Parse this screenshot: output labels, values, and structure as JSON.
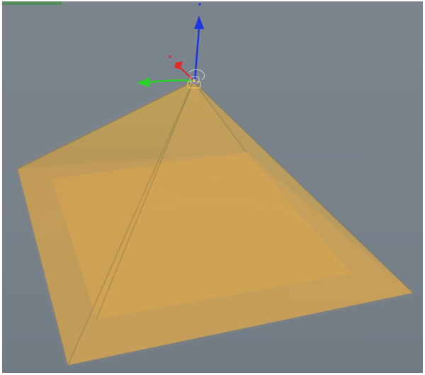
{
  "viewport": {
    "background": "#7a838c",
    "hud_indicator_color": "#4e8a52"
  },
  "object": {
    "shape": "pyramid",
    "state": "selected",
    "color": "#d3aa4d"
  },
  "gizmo": {
    "type": "translate-gizmo",
    "axes": [
      {
        "axis": "x",
        "color": "#e02a2a",
        "icon": "red-axis-arrow-icon"
      },
      {
        "axis": "y",
        "color": "#2ad12a",
        "icon": "green-axis-arrow-icon"
      },
      {
        "axis": "z",
        "color": "#1f35e6",
        "icon": "blue-axis-arrow-icon"
      }
    ]
  }
}
